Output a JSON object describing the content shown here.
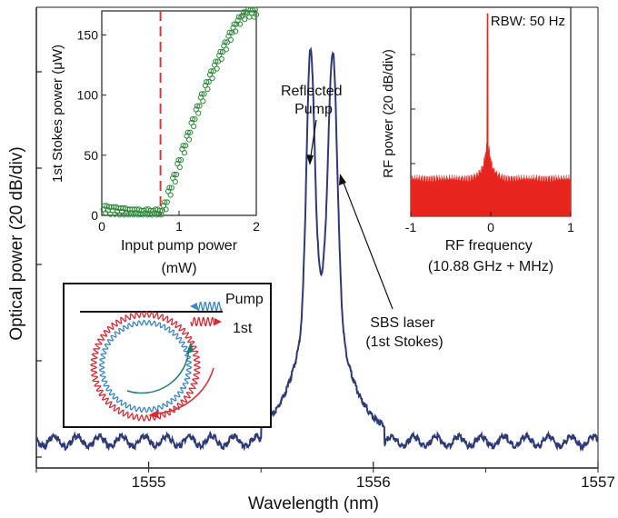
{
  "chart_data": [
    {
      "type": "line",
      "name": "main-spectrum",
      "xlabel": "Wavelength (nm)",
      "ylabel": "Optical power (20 dB/div)",
      "xlim": [
        1554.5,
        1557.0
      ],
      "x_ticks": [
        1555,
        1556,
        1557
      ],
      "y_divisions": 5,
      "line_color": "#2e3a78",
      "annotations": [
        {
          "text": "Reflected\nPump",
          "x": 1555.73,
          "y": 0.81
        },
        {
          "text": "SBS laser\n(1st Stokes)",
          "x": 1555.85,
          "y": 0.85
        }
      ],
      "peaks": [
        {
          "x": 1555.72,
          "y": 0.8
        },
        {
          "x": 1555.82,
          "y": 0.83
        }
      ],
      "fringe_period": 0.1,
      "fringe_range": [
        1554.5,
        1557.0
      ],
      "inset_diagram": {
        "labels": [
          "Pump",
          "1st"
        ],
        "pump_color": "#3a86c8",
        "stokes_color": "#d62a34"
      }
    },
    {
      "type": "scatter",
      "name": "stokes-vs-pump-inset",
      "xlabel": "Input pump power (mW)",
      "ylabel": "1st Stokes power (μW)",
      "xlim": [
        0,
        2
      ],
      "ylim": [
        0,
        170
      ],
      "x_ticks": [
        0,
        1,
        2
      ],
      "y_ticks": [
        0,
        50,
        100,
        150
      ],
      "threshold_x": 0.76,
      "threshold_color": "#e0353b",
      "marker_color": "#2f8a3a",
      "points": [
        [
          0.02,
          5
        ],
        [
          0.08,
          4
        ],
        [
          0.14,
          4
        ],
        [
          0.2,
          3
        ],
        [
          0.26,
          3
        ],
        [
          0.32,
          2
        ],
        [
          0.38,
          2
        ],
        [
          0.44,
          2
        ],
        [
          0.5,
          1
        ],
        [
          0.56,
          2
        ],
        [
          0.62,
          1
        ],
        [
          0.68,
          2
        ],
        [
          0.74,
          1
        ],
        [
          0.8,
          8
        ],
        [
          0.86,
          20
        ],
        [
          0.92,
          31
        ],
        [
          0.98,
          43
        ],
        [
          1.04,
          55
        ],
        [
          1.1,
          66
        ],
        [
          1.16,
          77
        ],
        [
          1.22,
          88
        ],
        [
          1.28,
          98
        ],
        [
          1.34,
          108
        ],
        [
          1.4,
          117
        ],
        [
          1.46,
          125
        ],
        [
          1.52,
          133
        ],
        [
          1.58,
          141
        ],
        [
          1.64,
          149
        ],
        [
          1.7,
          156
        ],
        [
          1.76,
          162
        ],
        [
          1.82,
          166
        ],
        [
          1.88,
          168
        ],
        [
          1.94,
          168
        ],
        [
          2.0,
          167
        ]
      ]
    },
    {
      "type": "area",
      "name": "rf-spectrum-inset",
      "title": "RBW: 50 Hz",
      "xlabel": "RF frequency\n(10.88 GHz + MHz)",
      "ylabel": "RF power (20 dB/div)",
      "xlim": [
        -1,
        1
      ],
      "x_ticks": [
        -1,
        0,
        1
      ],
      "fill_color": "#e8241f",
      "peak_x": -0.04,
      "noise_floor": 0.15,
      "peak_level": 0.97
    }
  ]
}
